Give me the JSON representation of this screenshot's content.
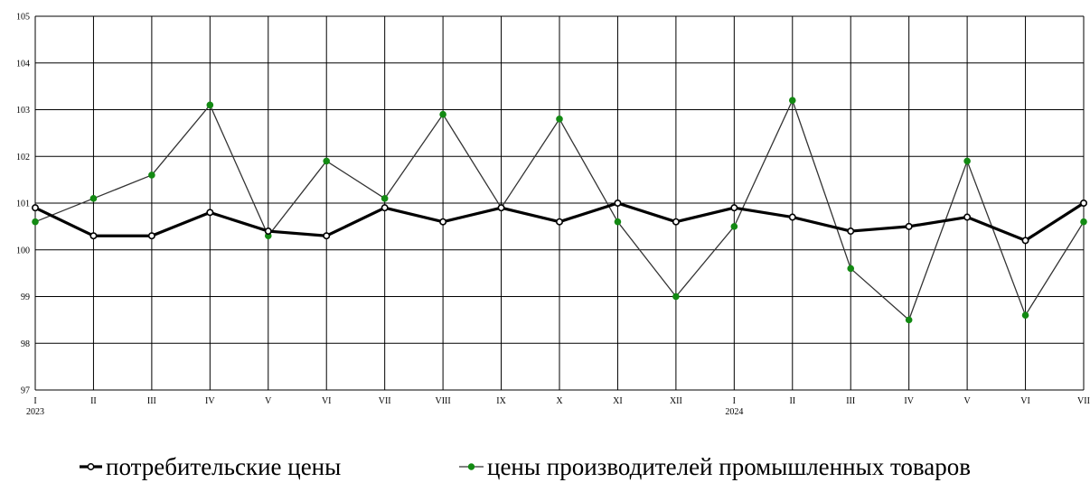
{
  "chart_data": {
    "type": "line",
    "categories": [
      "I",
      "II",
      "III",
      "IV",
      "V",
      "VI",
      "VII",
      "VIII",
      "IX",
      "X",
      "XI",
      "XII",
      "I",
      "II",
      "III",
      "IV",
      "V",
      "VI",
      "VII"
    ],
    "year_labels": [
      {
        "index": 0,
        "label": "2023"
      },
      {
        "index": 12,
        "label": "2024"
      }
    ],
    "series": [
      {
        "name": "потребительские цены",
        "color": "#000000",
        "marker_fill": "#ffffff",
        "values": [
          100.9,
          100.3,
          100.3,
          100.8,
          100.4,
          100.3,
          100.9,
          100.6,
          100.9,
          100.6,
          101.0,
          100.6,
          100.9,
          100.7,
          100.4,
          100.5,
          100.7,
          100.2,
          101.0
        ]
      },
      {
        "name": "цены производителей промышленных товаров",
        "color": "#333333",
        "marker_fill": "#138a13",
        "values": [
          100.6,
          101.1,
          101.6,
          103.1,
          100.3,
          101.9,
          101.1,
          102.9,
          100.9,
          102.8,
          100.6,
          99.0,
          100.5,
          103.2,
          99.6,
          98.5,
          101.9,
          98.6,
          100.6
        ]
      }
    ],
    "ylim": [
      97,
      105
    ],
    "yticks": [
      97,
      98,
      99,
      100,
      101,
      102,
      103,
      104,
      105
    ],
    "grid": true,
    "legend_position": "bottom",
    "title": "",
    "xlabel": "",
    "ylabel": ""
  }
}
